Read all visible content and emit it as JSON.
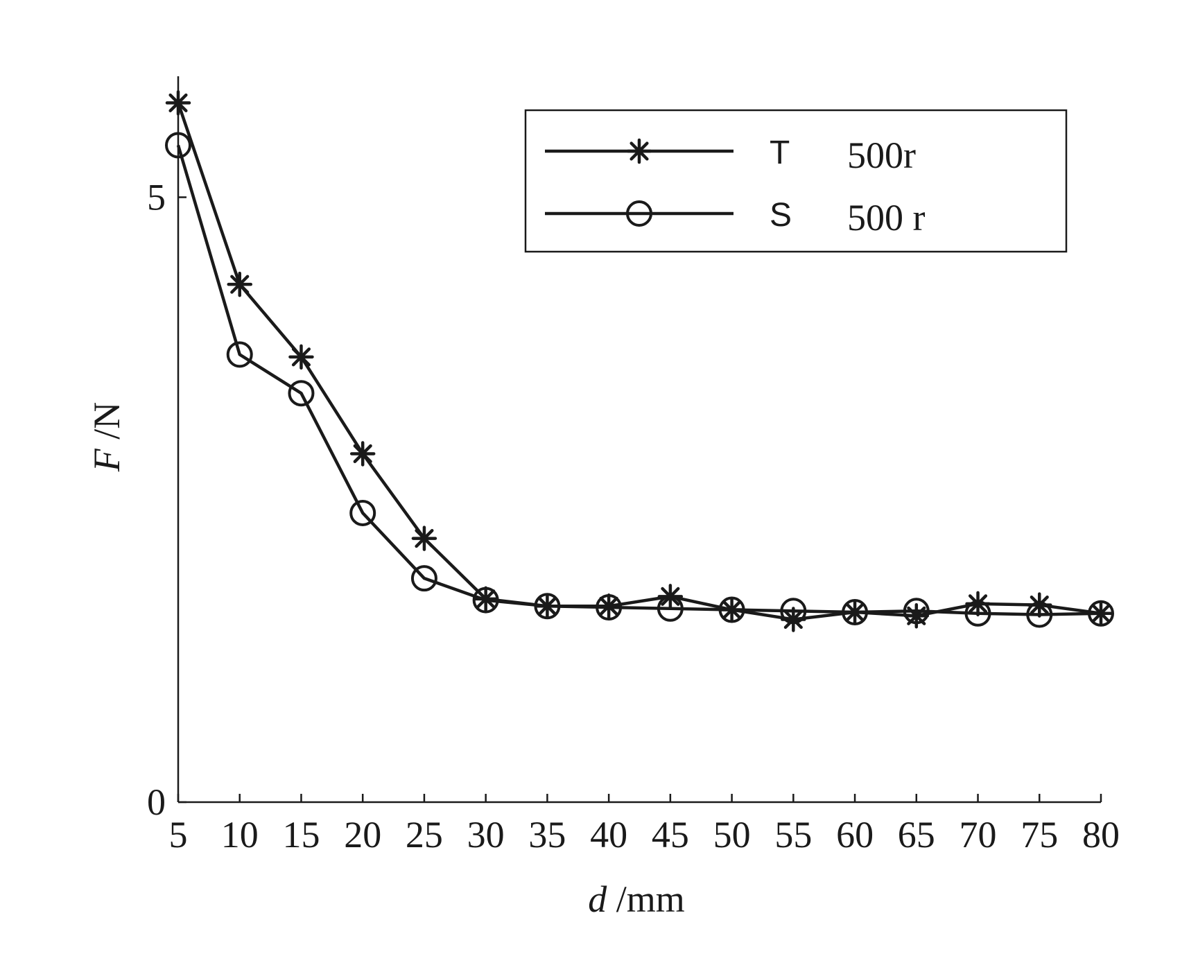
{
  "chart_data": {
    "type": "line",
    "xlabel_var": "d",
    "xlabel_unit": " /mm",
    "ylabel_var": "F",
    "ylabel_unit": " /N",
    "x": [
      5,
      10,
      15,
      20,
      25,
      30,
      35,
      40,
      45,
      50,
      55,
      60,
      65,
      70,
      75,
      80
    ],
    "xlim": [
      5,
      80
    ],
    "ylim": [
      0,
      6
    ],
    "yticks": [
      0,
      5
    ],
    "grid": false,
    "legend_position": "top-right",
    "series": [
      {
        "name": "T",
        "name_suffix": "500r",
        "marker": "asterisk",
        "values": [
          5.78,
          4.28,
          3.68,
          2.88,
          2.18,
          1.68,
          1.62,
          1.62,
          1.7,
          1.59,
          1.51,
          1.57,
          1.54,
          1.64,
          1.63,
          1.56
        ]
      },
      {
        "name": "S",
        "name_suffix": "500 r",
        "marker": "circle",
        "values": [
          5.43,
          3.7,
          3.38,
          2.39,
          1.85,
          1.67,
          1.62,
          1.61,
          1.6,
          1.59,
          1.58,
          1.57,
          1.58,
          1.56,
          1.55,
          1.56
        ]
      }
    ],
    "colors": {
      "line": "#1a1a1a",
      "axis": "#1a1a1a",
      "background": "#ffffff"
    }
  }
}
